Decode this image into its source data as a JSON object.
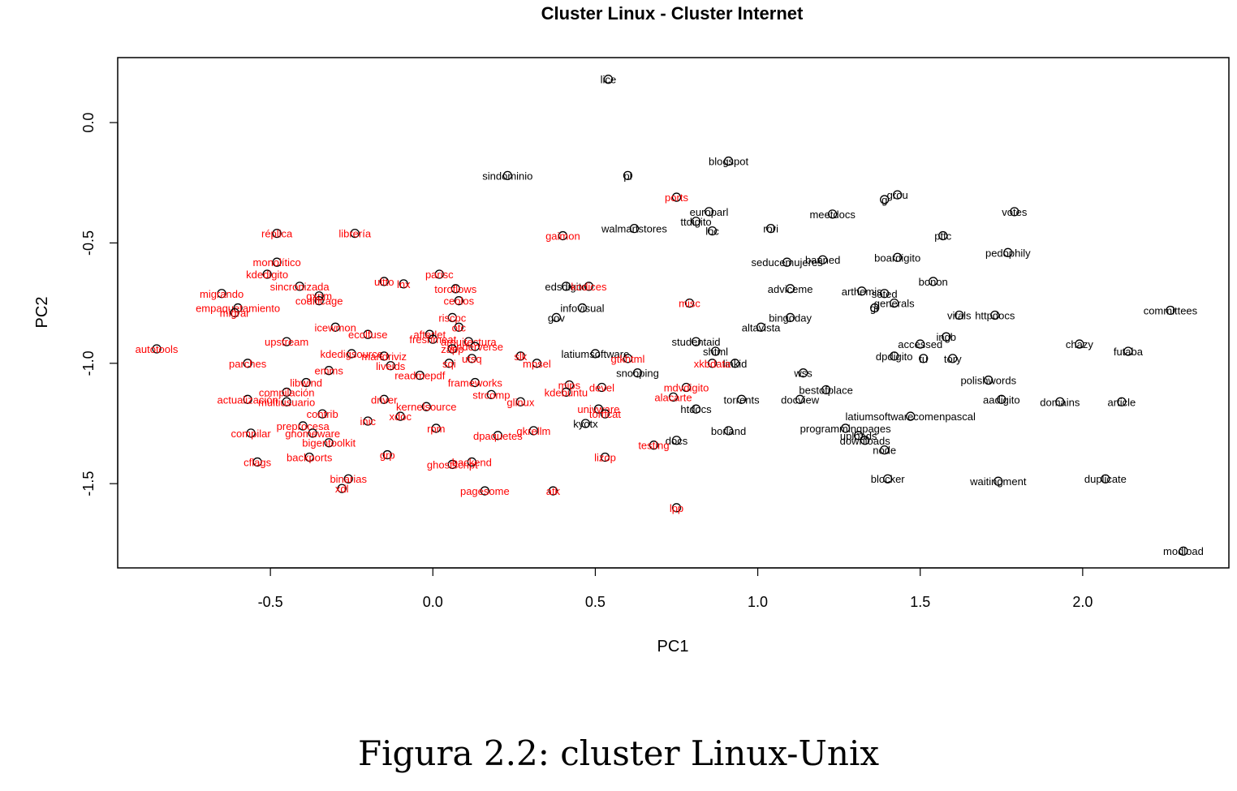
{
  "caption": "Figura 2.2: cluster Linux-Unix",
  "chart_data": {
    "type": "scatter",
    "title": "Cluster Linux - Cluster Internet",
    "xlabel": "PC1",
    "ylabel": "PC2",
    "xlim": [
      -0.97,
      2.45
    ],
    "ylim": [
      -1.85,
      0.27
    ],
    "xticks": [
      -0.5,
      0.0,
      0.5,
      1.0,
      1.5,
      2.0
    ],
    "xtick_labels": [
      "-0.5",
      "0.0",
      "0.5",
      "1.0",
      "1.5",
      "2.0"
    ],
    "yticks": [
      0.0,
      -0.5,
      -1.0,
      -1.5
    ],
    "ytick_labels": [
      "0.0",
      "-0.5",
      "-1.0",
      "-1.5"
    ],
    "grid": false,
    "colors": {
      "linux": "#ff0000",
      "internet": "#000000"
    },
    "series": [
      {
        "points": [
          {
            "label": "lice",
            "x": 0.54,
            "y": 0.18
          },
          {
            "label": "blogspot",
            "x": 0.91,
            "y": -0.16
          },
          {
            "label": "sindominio",
            "x": 0.23,
            "y": -0.22
          },
          {
            "label": "pl",
            "x": 0.6,
            "y": -0.22
          },
          {
            "label": "europarl",
            "x": 0.85,
            "y": -0.37
          },
          {
            "label": "ttdigito",
            "x": 0.81,
            "y": -0.41
          },
          {
            "label": "loc",
            "x": 0.86,
            "y": -0.45
          },
          {
            "label": "walmartstores",
            "x": 0.62,
            "y": -0.44
          },
          {
            "label": "rori",
            "x": 1.04,
            "y": -0.44
          },
          {
            "label": "meetdocs",
            "x": 1.23,
            "y": -0.38
          },
          {
            "label": "grou",
            "x": 1.43,
            "y": -0.3
          },
          {
            "label": "g",
            "x": 1.39,
            "y": -0.32
          },
          {
            "label": "votes",
            "x": 1.79,
            "y": -0.37
          },
          {
            "label": "pttc",
            "x": 1.57,
            "y": -0.47
          },
          {
            "label": "pedophily",
            "x": 1.77,
            "y": -0.54
          },
          {
            "label": "boardigito",
            "x": 1.43,
            "y": -0.56
          },
          {
            "label": "seducemujeres",
            "x": 1.09,
            "y": -0.58
          },
          {
            "label": "banned",
            "x": 1.2,
            "y": -0.57
          },
          {
            "label": "bonon",
            "x": 1.54,
            "y": -0.66
          },
          {
            "label": "edsdigito",
            "x": 0.41,
            "y": -0.68
          },
          {
            "label": "adviceme",
            "x": 1.1,
            "y": -0.69
          },
          {
            "label": "arthemis",
            "x": 1.32,
            "y": -0.7
          },
          {
            "label": "soted",
            "x": 1.39,
            "y": -0.71
          },
          {
            "label": "generals",
            "x": 1.42,
            "y": -0.75
          },
          {
            "label": "gr",
            "x": 1.36,
            "y": -0.77
          },
          {
            "label": "infovisual",
            "x": 0.46,
            "y": -0.77
          },
          {
            "label": "gov",
            "x": 0.38,
            "y": -0.81
          },
          {
            "label": "bingoday",
            "x": 1.1,
            "y": -0.81
          },
          {
            "label": "altavista",
            "x": 1.01,
            "y": -0.85
          },
          {
            "label": "vitals",
            "x": 1.62,
            "y": -0.8
          },
          {
            "label": "httpdocs",
            "x": 1.73,
            "y": -0.8
          },
          {
            "label": "committees",
            "x": 2.27,
            "y": -0.78
          },
          {
            "label": "ingb",
            "x": 1.58,
            "y": -0.89
          },
          {
            "label": "studentaid",
            "x": 0.81,
            "y": -0.91
          },
          {
            "label": "accessed",
            "x": 1.5,
            "y": -0.92
          },
          {
            "label": "chazy",
            "x": 1.99,
            "y": -0.92
          },
          {
            "label": "futaba",
            "x": 2.14,
            "y": -0.95
          },
          {
            "label": "latiumsoftware",
            "x": 0.5,
            "y": -0.96
          },
          {
            "label": "shtml",
            "x": 0.87,
            "y": -0.95
          },
          {
            "label": "dpdigito",
            "x": 1.42,
            "y": -0.97
          },
          {
            "label": "tu",
            "x": 1.51,
            "y": -0.98
          },
          {
            "label": "tory",
            "x": 1.6,
            "y": -0.98
          },
          {
            "label": "linkid",
            "x": 0.93,
            "y": -1.0
          },
          {
            "label": "snooping",
            "x": 0.63,
            "y": -1.04
          },
          {
            "label": "wss",
            "x": 1.14,
            "y": -1.04
          },
          {
            "label": "polishwords",
            "x": 1.71,
            "y": -1.07
          },
          {
            "label": "bestofplace",
            "x": 1.21,
            "y": -1.11
          },
          {
            "label": "torrents",
            "x": 0.95,
            "y": -1.15
          },
          {
            "label": "docview",
            "x": 1.13,
            "y": -1.15
          },
          {
            "label": "aadigito",
            "x": 1.75,
            "y": -1.15
          },
          {
            "label": "domains",
            "x": 1.93,
            "y": -1.16
          },
          {
            "label": "article",
            "x": 2.12,
            "y": -1.16
          },
          {
            "label": "htdocs",
            "x": 0.81,
            "y": -1.19
          },
          {
            "label": "latiumsoftwarecomenpascal",
            "x": 1.47,
            "y": -1.22
          },
          {
            "label": "kyotx",
            "x": 0.47,
            "y": -1.25
          },
          {
            "label": "programmingpages",
            "x": 1.27,
            "y": -1.27
          },
          {
            "label": "borland",
            "x": 0.91,
            "y": -1.28
          },
          {
            "label": "uploads",
            "x": 1.31,
            "y": -1.3
          },
          {
            "label": "downloads",
            "x": 1.33,
            "y": -1.32
          },
          {
            "label": "docs",
            "x": 0.75,
            "y": -1.32
          },
          {
            "label": "node",
            "x": 1.39,
            "y": -1.36
          },
          {
            "label": "blocker",
            "x": 1.4,
            "y": -1.48
          },
          {
            "label": "waitingment",
            "x": 1.74,
            "y": -1.49
          },
          {
            "label": "duplicate",
            "x": 2.07,
            "y": -1.48
          },
          {
            "label": "modload",
            "x": 2.31,
            "y": -1.78
          }
        ]
      },
      {
        "points": [
          {
            "label": "ports",
            "x": 0.75,
            "y": -0.31
          },
          {
            "label": "gaimon",
            "x": 0.4,
            "y": -0.47
          },
          {
            "label": "réplica",
            "x": -0.48,
            "y": -0.46
          },
          {
            "label": "librería",
            "x": -0.24,
            "y": -0.46
          },
          {
            "label": "monolítico",
            "x": -0.48,
            "y": -0.58
          },
          {
            "label": "kdedigito",
            "x": -0.51,
            "y": -0.63
          },
          {
            "label": "parisc",
            "x": 0.02,
            "y": -0.63
          },
          {
            "label": "ultto",
            "x": -0.15,
            "y": -0.66
          },
          {
            "label": "lnx",
            "x": -0.09,
            "y": -0.67
          },
          {
            "label": "sincronizada",
            "x": -0.41,
            "y": -0.68
          },
          {
            "label": "toroflows",
            "x": 0.07,
            "y": -0.69
          },
          {
            "label": "kodices",
            "x": 0.48,
            "y": -0.68
          },
          {
            "label": "migrando",
            "x": -0.65,
            "y": -0.71
          },
          {
            "label": "gxpm",
            "x": -0.35,
            "y": -0.72
          },
          {
            "label": "codificage",
            "x": -0.35,
            "y": -0.74
          },
          {
            "label": "ceolos",
            "x": 0.08,
            "y": -0.74
          },
          {
            "label": "misc",
            "x": 0.79,
            "y": -0.75
          },
          {
            "label": "empaquetamiento",
            "x": -0.6,
            "y": -0.77
          },
          {
            "label": "migrar",
            "x": -0.61,
            "y": -0.79
          },
          {
            "label": "riscpc",
            "x": 0.06,
            "y": -0.81
          },
          {
            "label": "otc",
            "x": 0.08,
            "y": -0.85
          },
          {
            "label": "autotools",
            "x": -0.85,
            "y": -0.94
          },
          {
            "label": "upstream",
            "x": -0.45,
            "y": -0.91
          },
          {
            "label": "icewmon",
            "x": -0.3,
            "y": -0.85
          },
          {
            "label": "ecolfuse",
            "x": -0.2,
            "y": -0.88
          },
          {
            "label": "afterlet",
            "x": -0.01,
            "y": -0.88
          },
          {
            "label": "freshmeat",
            "x": 0.0,
            "y": -0.9
          },
          {
            "label": "arquitectura",
            "x": 0.11,
            "y": -0.91
          },
          {
            "label": "renderverse",
            "x": 0.13,
            "y": -0.93
          },
          {
            "label": "zapp",
            "x": 0.06,
            "y": -0.94
          },
          {
            "label": "kdedigsource",
            "x": -0.25,
            "y": -0.96
          },
          {
            "label": "mandriviz",
            "x": -0.15,
            "y": -0.97
          },
          {
            "label": "slk",
            "x": 0.27,
            "y": -0.97
          },
          {
            "label": "utsq",
            "x": 0.12,
            "y": -0.98
          },
          {
            "label": "mpsel",
            "x": 0.32,
            "y": -1.0
          },
          {
            "label": "gtkhtml",
            "x": 0.6,
            "y": -0.98
          },
          {
            "label": "xkbdata",
            "x": 0.86,
            "y": -1.0
          },
          {
            "label": "parches",
            "x": -0.57,
            "y": -1.0
          },
          {
            "label": "sqi",
            "x": 0.05,
            "y": -1.0
          },
          {
            "label": "liveids",
            "x": -0.13,
            "y": -1.01
          },
          {
            "label": "emms",
            "x": -0.32,
            "y": -1.03
          },
          {
            "label": "readmepdf",
            "x": -0.04,
            "y": -1.05
          },
          {
            "label": "frameworks",
            "x": 0.13,
            "y": -1.08
          },
          {
            "label": "mdvdigito",
            "x": 0.78,
            "y": -1.1
          },
          {
            "label": "mips",
            "x": 0.42,
            "y": -1.09
          },
          {
            "label": "devel",
            "x": 0.52,
            "y": -1.1
          },
          {
            "label": "libwind",
            "x": -0.39,
            "y": -1.08
          },
          {
            "label": "compilación",
            "x": -0.45,
            "y": -1.12
          },
          {
            "label": "alacarte",
            "x": 0.74,
            "y": -1.14
          },
          {
            "label": "kdebuntu",
            "x": 0.41,
            "y": -1.12
          },
          {
            "label": "actualización",
            "x": -0.57,
            "y": -1.15
          },
          {
            "label": "multiusuario",
            "x": -0.45,
            "y": -1.16
          },
          {
            "label": "driver",
            "x": -0.15,
            "y": -1.15
          },
          {
            "label": "glinux",
            "x": 0.27,
            "y": -1.16
          },
          {
            "label": "strcomp",
            "x": 0.18,
            "y": -1.13
          },
          {
            "label": "kernelsource",
            "x": -0.02,
            "y": -1.18
          },
          {
            "label": "univware",
            "x": 0.51,
            "y": -1.19
          },
          {
            "label": "tomcat",
            "x": 0.53,
            "y": -1.21
          },
          {
            "label": "contrib",
            "x": -0.34,
            "y": -1.21
          },
          {
            "label": "xdoc",
            "x": -0.1,
            "y": -1.22
          },
          {
            "label": "inic",
            "x": -0.2,
            "y": -1.24
          },
          {
            "label": "preprocesa",
            "x": -0.4,
            "y": -1.26
          },
          {
            "label": "rpm",
            "x": 0.01,
            "y": -1.27
          },
          {
            "label": "gkrellm",
            "x": 0.31,
            "y": -1.28
          },
          {
            "label": "compilar",
            "x": -0.56,
            "y": -1.29
          },
          {
            "label": "gnomeware",
            "x": -0.37,
            "y": -1.29
          },
          {
            "label": "dpaquetes",
            "x": 0.2,
            "y": -1.3
          },
          {
            "label": "bigentoolkit",
            "x": -0.32,
            "y": -1.33
          },
          {
            "label": "testing",
            "x": 0.68,
            "y": -1.34
          },
          {
            "label": "cflags",
            "x": -0.54,
            "y": -1.41
          },
          {
            "label": "backports",
            "x": -0.38,
            "y": -1.39
          },
          {
            "label": "grp",
            "x": -0.14,
            "y": -1.38
          },
          {
            "label": "lizop",
            "x": 0.53,
            "y": -1.39
          },
          {
            "label": "ghostscript",
            "x": 0.06,
            "y": -1.42
          },
          {
            "label": "backend",
            "x": 0.12,
            "y": -1.41
          },
          {
            "label": "binarias",
            "x": -0.26,
            "y": -1.48
          },
          {
            "label": "xdl",
            "x": -0.28,
            "y": -1.52
          },
          {
            "label": "pagesome",
            "x": 0.16,
            "y": -1.53
          },
          {
            "label": "atk",
            "x": 0.37,
            "y": -1.53
          },
          {
            "label": "lpp",
            "x": 0.75,
            "y": -1.6
          }
        ]
      }
    ]
  }
}
